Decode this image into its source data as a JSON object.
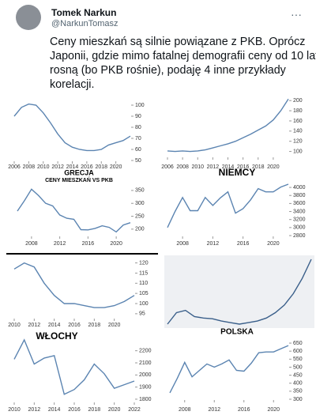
{
  "header": {
    "name": "Tomek Narkun",
    "handle": "@NarkunTomasz"
  },
  "tweet": {
    "lines": [
      "Ceny mieszkań są silnie powiązane z PKB. Oprócz",
      "Japonii, gdzie mimo fatalnej demografii ceny od 10 lat",
      "rosną (bo PKB rośnie), podaję 4 inne przykłady",
      "korelacji."
    ]
  },
  "panels": [
    {
      "label": "GRECJA",
      "sublabel": "CENY MIESZKAŃ VS PKB",
      "charts": [
        {
          "type": "line",
          "color": "#5b84b1",
          "x": [
            2006,
            2007,
            2008,
            2009,
            2010,
            2011,
            2012,
            2013,
            2014,
            2015,
            2016,
            2017,
            2018,
            2019,
            2020,
            2021,
            2022
          ],
          "values": [
            90,
            98,
            101,
            100,
            93,
            84,
            74,
            66,
            62,
            60,
            59,
            59,
            60,
            64,
            66,
            68,
            72
          ],
          "ylim": [
            50,
            105
          ],
          "yticks": [
            50,
            60,
            70,
            80,
            90,
            100
          ],
          "xticks": [
            2006,
            2008,
            2010,
            2012,
            2014,
            2016,
            2018,
            2020
          ]
        },
        {
          "type": "line",
          "color": "#5b84b1",
          "x": [
            2006,
            2007,
            2008,
            2009,
            2010,
            2011,
            2012,
            2013,
            2014,
            2015,
            2016,
            2017,
            2018,
            2019,
            2020,
            2021,
            2022
          ],
          "values": [
            270,
            310,
            355,
            330,
            300,
            290,
            255,
            242,
            238,
            198,
            197,
            203,
            213,
            207,
            189,
            216,
            225
          ],
          "ylim": [
            175,
            365
          ],
          "yticks": [
            200,
            250,
            300,
            350
          ],
          "xticks": [
            2008,
            2012,
            2016,
            2020
          ]
        }
      ]
    },
    {
      "label": "NIEMCY",
      "charts": [
        {
          "type": "line",
          "color": "#5b84b1",
          "x": [
            2006,
            2007,
            2008,
            2009,
            2010,
            2011,
            2012,
            2013,
            2014,
            2015,
            2016,
            2017,
            2018,
            2019,
            2020,
            2021,
            2022
          ],
          "values": [
            101,
            100,
            101,
            100,
            101,
            103,
            107,
            111,
            115,
            120,
            127,
            134,
            142,
            150,
            162,
            180,
            203
          ],
          "ylim": [
            90,
            205
          ],
          "yticks": [
            100,
            120,
            140,
            160,
            180,
            200
          ],
          "xticks": [
            2006,
            2008,
            2010,
            2012,
            2014,
            2016,
            2018,
            2020
          ]
        },
        {
          "type": "line",
          "color": "#5b84b1",
          "x": [
            2006,
            2007,
            2008,
            2009,
            2010,
            2011,
            2012,
            2013,
            2014,
            2015,
            2016,
            2017,
            2018,
            2019,
            2020,
            2021,
            2022
          ],
          "values": [
            3000,
            3400,
            3750,
            3420,
            3420,
            3750,
            3550,
            3740,
            3890,
            3360,
            3470,
            3690,
            3970,
            3890,
            3890,
            4010,
            4080
          ],
          "ylim": [
            2800,
            4100
          ],
          "yticks": [
            2800,
            3000,
            3200,
            3400,
            3600,
            3800,
            4000
          ],
          "xticks": [
            2008,
            2012,
            2016,
            2020
          ]
        }
      ]
    },
    {
      "label": "WŁOCHY",
      "charts": [
        {
          "type": "line",
          "color": "#5b84b1",
          "x": [
            2010,
            2011,
            2012,
            2013,
            2014,
            2015,
            2016,
            2017,
            2018,
            2019,
            2020,
            2021,
            2022
          ],
          "values": [
            117,
            120,
            118,
            110,
            104,
            100,
            100,
            99,
            98,
            98,
            99,
            101,
            104
          ],
          "ylim": [
            93,
            121
          ],
          "yticks": [
            95,
            100,
            105,
            110,
            115,
            120
          ],
          "xticks": [
            2010,
            2012,
            2014,
            2016,
            2018,
            2020
          ]
        },
        {
          "type": "line",
          "color": "#5b84b1",
          "x": [
            2010,
            2011,
            2012,
            2013,
            2014,
            2015,
            2016,
            2017,
            2018,
            2019,
            2020,
            2021,
            2022
          ],
          "values": [
            2130,
            2290,
            2090,
            2140,
            2160,
            1840,
            1880,
            1960,
            2090,
            2010,
            1890,
            1920,
            1950
          ],
          "ylim": [
            1780,
            2250
          ],
          "yticks": [
            1800,
            1900,
            2000,
            2100,
            2200
          ],
          "xticks": [
            2010,
            2012,
            2014,
            2016,
            2018,
            2020,
            2022
          ]
        }
      ]
    },
    {
      "label": "POLSKA",
      "charts": [
        {
          "type": "line",
          "color": "#3a5f8a",
          "x": [
            2006,
            2007,
            2008,
            2009,
            2010,
            2011,
            2012,
            2013,
            2014,
            2015,
            2016,
            2017,
            2018,
            2019,
            2020,
            2021,
            2022
          ],
          "values": [
            100,
            115,
            118,
            110,
            108,
            107,
            104,
            102,
            100,
            102,
            104,
            108,
            115,
            125,
            140,
            160,
            185
          ]
        },
        {
          "type": "line",
          "color": "#5b84b1",
          "x": [
            2006,
            2007,
            2008,
            2009,
            2010,
            2011,
            2012,
            2013,
            2014,
            2015,
            2016,
            2017,
            2018,
            2019,
            2020,
            2021,
            2022
          ],
          "values": [
            340,
            430,
            530,
            440,
            480,
            520,
            500,
            520,
            545,
            480,
            475,
            525,
            590,
            595,
            595,
            615,
            635
          ],
          "ylim": [
            300,
            660
          ],
          "yticks": [
            300,
            350,
            400,
            450,
            500,
            550,
            600,
            650
          ],
          "xticks": [
            2008,
            2012,
            2016,
            2020
          ]
        }
      ]
    }
  ]
}
